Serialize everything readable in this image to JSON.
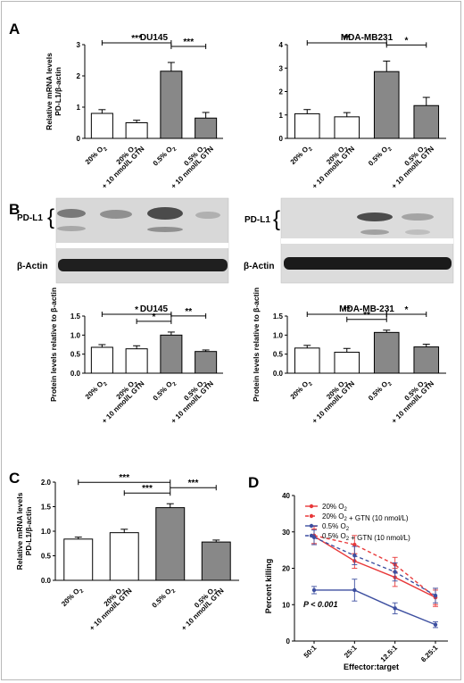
{
  "panel_letters": [
    "A",
    "B",
    "C",
    "D"
  ],
  "blot_labels": {
    "pdl1": "PD-L1",
    "actin": "β-Actin"
  },
  "colors": {
    "gray_bar": "#888888",
    "white_bar": "#ffffff",
    "red": "#e8393a",
    "blue": "#3d4fa0",
    "blot_bg": "#dadada"
  },
  "chart_data": [
    {
      "id": "A1",
      "type": "bar",
      "title": "DU145",
      "ylabel": [
        "Relative mRNA levels",
        "PD-L1/β-actin"
      ],
      "ylim": [
        0,
        3
      ],
      "yticks": [
        "0",
        "1",
        "2",
        "3"
      ],
      "categories": [
        "20% O2",
        "20% O2 + 10 nmol/L GTN",
        "0.5% O2",
        "0.5% O2 + 10 nmol/L GTN"
      ],
      "values": [
        0.8,
        0.5,
        2.15,
        0.65
      ],
      "errors": [
        0.12,
        0.08,
        0.28,
        0.18
      ],
      "fills": [
        "white",
        "white",
        "gray",
        "gray"
      ],
      "significance": [
        {
          "from": 0,
          "to": 2,
          "label": "***"
        },
        {
          "from": 2,
          "to": 3,
          "label": "***"
        }
      ]
    },
    {
      "id": "A2",
      "type": "bar",
      "title": "MDA-MB231",
      "ylabel": [],
      "ylim": [
        0,
        4
      ],
      "yticks": [
        "0",
        "1",
        "2",
        "3",
        "4"
      ],
      "categories": [
        "20% O2",
        "20% O2 + 10 nmol/L GTN",
        "0.5% O2",
        "0.5% O2 + 10 nmol/L GTN"
      ],
      "values": [
        1.05,
        0.92,
        2.85,
        1.4
      ],
      "errors": [
        0.18,
        0.18,
        0.45,
        0.35
      ],
      "fills": [
        "white",
        "white",
        "gray",
        "gray"
      ],
      "significance": [
        {
          "from": 0,
          "to": 2,
          "label": "**"
        },
        {
          "from": 2,
          "to": 3,
          "label": "*"
        }
      ]
    },
    {
      "id": "B1",
      "type": "bar",
      "title": "DU145",
      "ylabel": [
        "Protein levels relative to β-actin"
      ],
      "ylim": [
        0,
        1.5
      ],
      "yticks": [
        "0.0",
        "0.5",
        "1.0",
        "1.5"
      ],
      "categories": [
        "20% O2",
        "20% O2 + 10 nmol/L GTN",
        "0.5% O2",
        "0.5% O2 + 10 nmol/L GTN"
      ],
      "values": [
        0.68,
        0.64,
        1.0,
        0.57
      ],
      "errors": [
        0.07,
        0.08,
        0.08,
        0.04
      ],
      "fills": [
        "white",
        "white",
        "gray",
        "gray"
      ],
      "significance": [
        {
          "from": 0,
          "to": 2,
          "label": "*"
        },
        {
          "from": 1,
          "to": 2,
          "label": "*"
        },
        {
          "from": 2,
          "to": 3,
          "label": "**"
        }
      ]
    },
    {
      "id": "B2",
      "type": "bar",
      "title": "MDA-MB-231",
      "ylabel": [
        "Protein levels relative to β-actin"
      ],
      "ylim": [
        0,
        1.5
      ],
      "yticks": [
        "0.0",
        "0.5",
        "1.0",
        "1.5"
      ],
      "categories": [
        "20% O2",
        "20% O2 + 10 nmol/L GTN",
        "0.5% O2",
        "0.5% O2 + 10 nmol/L GTN"
      ],
      "values": [
        0.66,
        0.55,
        1.07,
        0.69
      ],
      "errors": [
        0.07,
        0.1,
        0.06,
        0.07
      ],
      "fills": [
        "white",
        "white",
        "gray",
        "gray"
      ],
      "significance": [
        {
          "from": 0,
          "to": 2,
          "label": "**"
        },
        {
          "from": 1,
          "to": 2,
          "label": "**"
        },
        {
          "from": 2,
          "to": 3,
          "label": "*"
        }
      ]
    },
    {
      "id": "C",
      "type": "bar",
      "title": "",
      "ylabel": [
        "Relative mRNA levels",
        "PD-L1/β-actin"
      ],
      "ylim": [
        0,
        2
      ],
      "yticks": [
        "0.0",
        "0.5",
        "1.0",
        "1.5",
        "2.0"
      ],
      "categories": [
        "20% O2",
        "20% O2 + 10 nmol/L GTN",
        "0.5% O2",
        "0.5% O2 + 10 nmol/L GTN"
      ],
      "values": [
        0.84,
        0.97,
        1.48,
        0.78
      ],
      "errors": [
        0.04,
        0.07,
        0.08,
        0.04
      ],
      "fills": [
        "white",
        "white",
        "gray",
        "gray"
      ],
      "significance": [
        {
          "from": 0,
          "to": 2,
          "label": "***"
        },
        {
          "from": 1,
          "to": 2,
          "label": "***"
        },
        {
          "from": 2,
          "to": 3,
          "label": "***"
        }
      ]
    },
    {
      "id": "D",
      "type": "line",
      "xlabel": "Effector:target",
      "ylabel": "Percent killing",
      "categories": [
        "50:1",
        "25:1",
        "12.5:1",
        "6.25:1"
      ],
      "ylim": [
        0,
        40
      ],
      "yticks": [
        "0",
        "10",
        "20",
        "30",
        "40"
      ],
      "annotation": "P < 0.001",
      "legend_position": "top-right",
      "series": [
        {
          "name": "20% O2",
          "color": "#e8393a",
          "dashed": false,
          "values": [
            28.8,
            22.0,
            17.5,
            12.0
          ],
          "errors": [
            2.0,
            2.0,
            2.5,
            2.0
          ]
        },
        {
          "name": "20% O2 + GTN (10 nmol/L)",
          "color": "#e8393a",
          "dashed": true,
          "values": [
            29.0,
            26.5,
            21.0,
            12.0
          ],
          "errors": [
            2.5,
            2.5,
            2.0,
            2.5
          ]
        },
        {
          "name": "0.5% O2",
          "color": "#3d4fa0",
          "dashed": false,
          "values": [
            14.0,
            14.0,
            9.0,
            4.5
          ],
          "errors": [
            1.0,
            3.0,
            1.5,
            0.8
          ]
        },
        {
          "name": "0.5% O2 + GTN (10 nmol/L)",
          "color": "#3d4fa0",
          "dashed": true,
          "values": [
            28.5,
            23.5,
            19.0,
            12.5
          ],
          "errors": [
            2.0,
            2.5,
            2.5,
            2.0
          ]
        }
      ]
    }
  ]
}
